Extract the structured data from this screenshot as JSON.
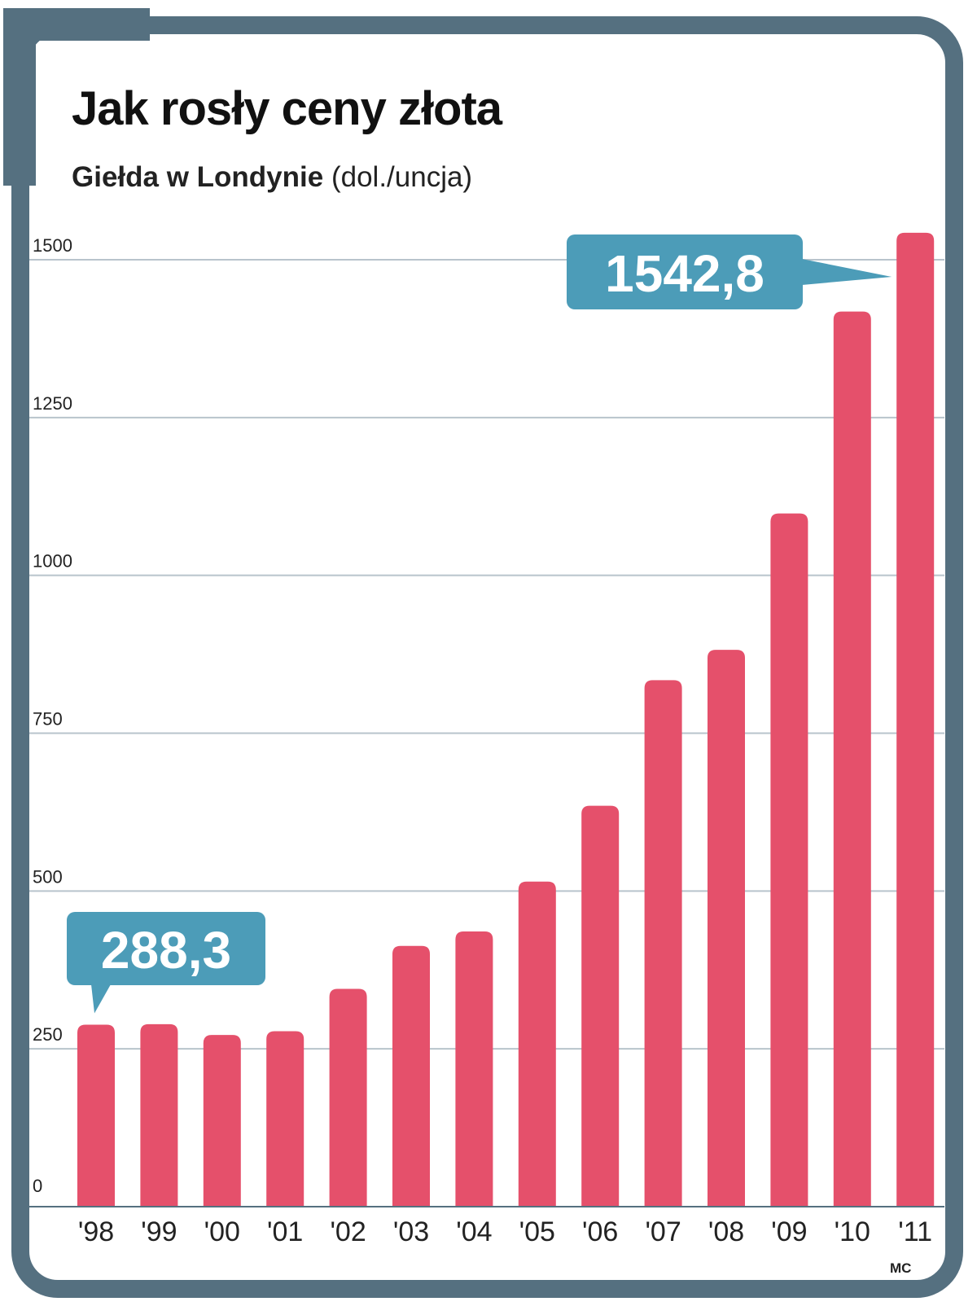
{
  "colors": {
    "frame": "#557080",
    "bar": "#e5506b",
    "callout": "#4c9cb8",
    "gridline": "#b8c4cc",
    "text": "#222222"
  },
  "header": {
    "title": "Jak rosły ceny złota",
    "subtitle_bold": "Giełda w Londynie",
    "subtitle_unit": "(dol./uncja)"
  },
  "credit": "MC",
  "chart_data": {
    "type": "bar",
    "title": "Jak rosły ceny złota",
    "subtitle": "Giełda w Londynie (dol./uncja)",
    "xlabel": "",
    "ylabel": "dol./uncja",
    "categories": [
      "'98",
      "'99",
      "'00",
      "'01",
      "'02",
      "'03",
      "'04",
      "'05",
      "'06",
      "'07",
      "'08",
      "'09",
      "'10",
      "'11"
    ],
    "values": [
      288.3,
      289,
      272,
      278,
      345,
      413,
      436,
      515,
      635,
      834,
      882,
      1098,
      1418,
      1542.8
    ],
    "ylim": [
      0,
      1500
    ],
    "yticks": [
      0,
      250,
      500,
      750,
      1000,
      1250,
      1500
    ],
    "ytick_labels": [
      "0",
      "250",
      "500",
      "750",
      "1000",
      "1250",
      "1500"
    ],
    "grid": true,
    "annotations": [
      {
        "category": "'98",
        "text": "288,3"
      },
      {
        "category": "'11",
        "text": "1542,8"
      }
    ]
  }
}
